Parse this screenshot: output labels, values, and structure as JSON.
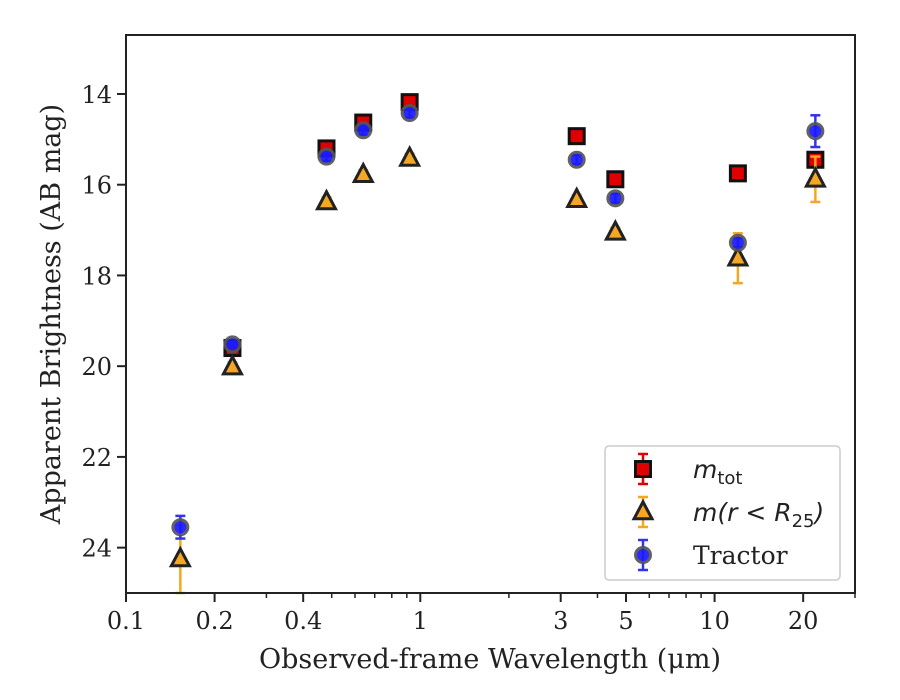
{
  "chart_data": {
    "type": "scatter",
    "xlabel": "Observed-frame Wavelength (μm)",
    "ylabel": "Apparent Brightness (AB mag)",
    "xscale": "log",
    "xlim": [
      0.1,
      30
    ],
    "ylim": [
      25.0,
      12.7
    ],
    "y_inverted": true,
    "xticks": [
      {
        "v": 0.1,
        "label": "0.1"
      },
      {
        "v": 0.2,
        "label": "0.2"
      },
      {
        "v": 0.4,
        "label": "0.4"
      },
      {
        "v": 1,
        "label": "1"
      },
      {
        "v": 3,
        "label": "3"
      },
      {
        "v": 5,
        "label": "5"
      },
      {
        "v": 10,
        "label": "10"
      },
      {
        "v": 20,
        "label": "20"
      }
    ],
    "yticks": [
      {
        "v": 14,
        "label": "14"
      },
      {
        "v": 16,
        "label": "16"
      },
      {
        "v": 18,
        "label": "18"
      },
      {
        "v": 20,
        "label": "20"
      },
      {
        "v": 22,
        "label": "22"
      },
      {
        "v": 24,
        "label": "24"
      }
    ],
    "legend_position": "bottom-right",
    "series": [
      {
        "name": "m_tot",
        "legend_main": "m",
        "legend_sub": "tot",
        "marker": "square",
        "color": "#e00000",
        "errcolor": "#e00000",
        "points": [
          {
            "x": 0.23,
            "y": 19.6,
            "err": 0.1
          },
          {
            "x": 0.48,
            "y": 15.2,
            "err": 0.1
          },
          {
            "x": 0.64,
            "y": 14.63,
            "err": 0.1
          },
          {
            "x": 0.92,
            "y": 14.18,
            "err": 0.1
          },
          {
            "x": 3.4,
            "y": 14.93,
            "err": 0.1
          },
          {
            "x": 4.6,
            "y": 15.88,
            "err": 0.1
          },
          {
            "x": 12.0,
            "y": 15.75,
            "err": 0.1
          },
          {
            "x": 22.0,
            "y": 15.45,
            "err": 0.1
          }
        ]
      },
      {
        "name": "m(r < R25)",
        "legend_main": "m(r < R",
        "legend_sub": "25",
        "legend_tail": ")",
        "marker": "triangle",
        "color": "#f5a623",
        "errcolor": "#f5a623",
        "points": [
          {
            "x": 0.153,
            "y": 24.25,
            "err": 0.75
          },
          {
            "x": 0.23,
            "y": 20.02,
            "err": 0.1
          },
          {
            "x": 0.48,
            "y": 16.38,
            "err": 0.1
          },
          {
            "x": 0.64,
            "y": 15.78,
            "err": 0.1
          },
          {
            "x": 0.92,
            "y": 15.42,
            "err": 0.1
          },
          {
            "x": 3.4,
            "y": 16.33,
            "err": 0.1
          },
          {
            "x": 4.6,
            "y": 17.05,
            "err": 0.1
          },
          {
            "x": 12.0,
            "y": 17.62,
            "err": 0.55
          },
          {
            "x": 22.0,
            "y": 15.88,
            "err": 0.5
          }
        ]
      },
      {
        "name": "Tractor",
        "legend_main": "Tractor",
        "marker": "circle",
        "color": "#1a1aff",
        "errcolor": "#3333ee",
        "points": [
          {
            "x": 0.153,
            "y": 23.55,
            "err": 0.25
          },
          {
            "x": 0.23,
            "y": 19.52,
            "err": 0.05
          },
          {
            "x": 0.48,
            "y": 15.38,
            "err": 0.1
          },
          {
            "x": 0.64,
            "y": 14.8,
            "err": 0.1
          },
          {
            "x": 0.92,
            "y": 14.42,
            "err": 0.1
          },
          {
            "x": 3.4,
            "y": 15.45,
            "err": 0.1
          },
          {
            "x": 4.6,
            "y": 16.3,
            "err": 0.1
          },
          {
            "x": 12.0,
            "y": 17.28,
            "err": 0.1
          },
          {
            "x": 22.0,
            "y": 14.82,
            "err": 0.35
          }
        ]
      }
    ]
  }
}
